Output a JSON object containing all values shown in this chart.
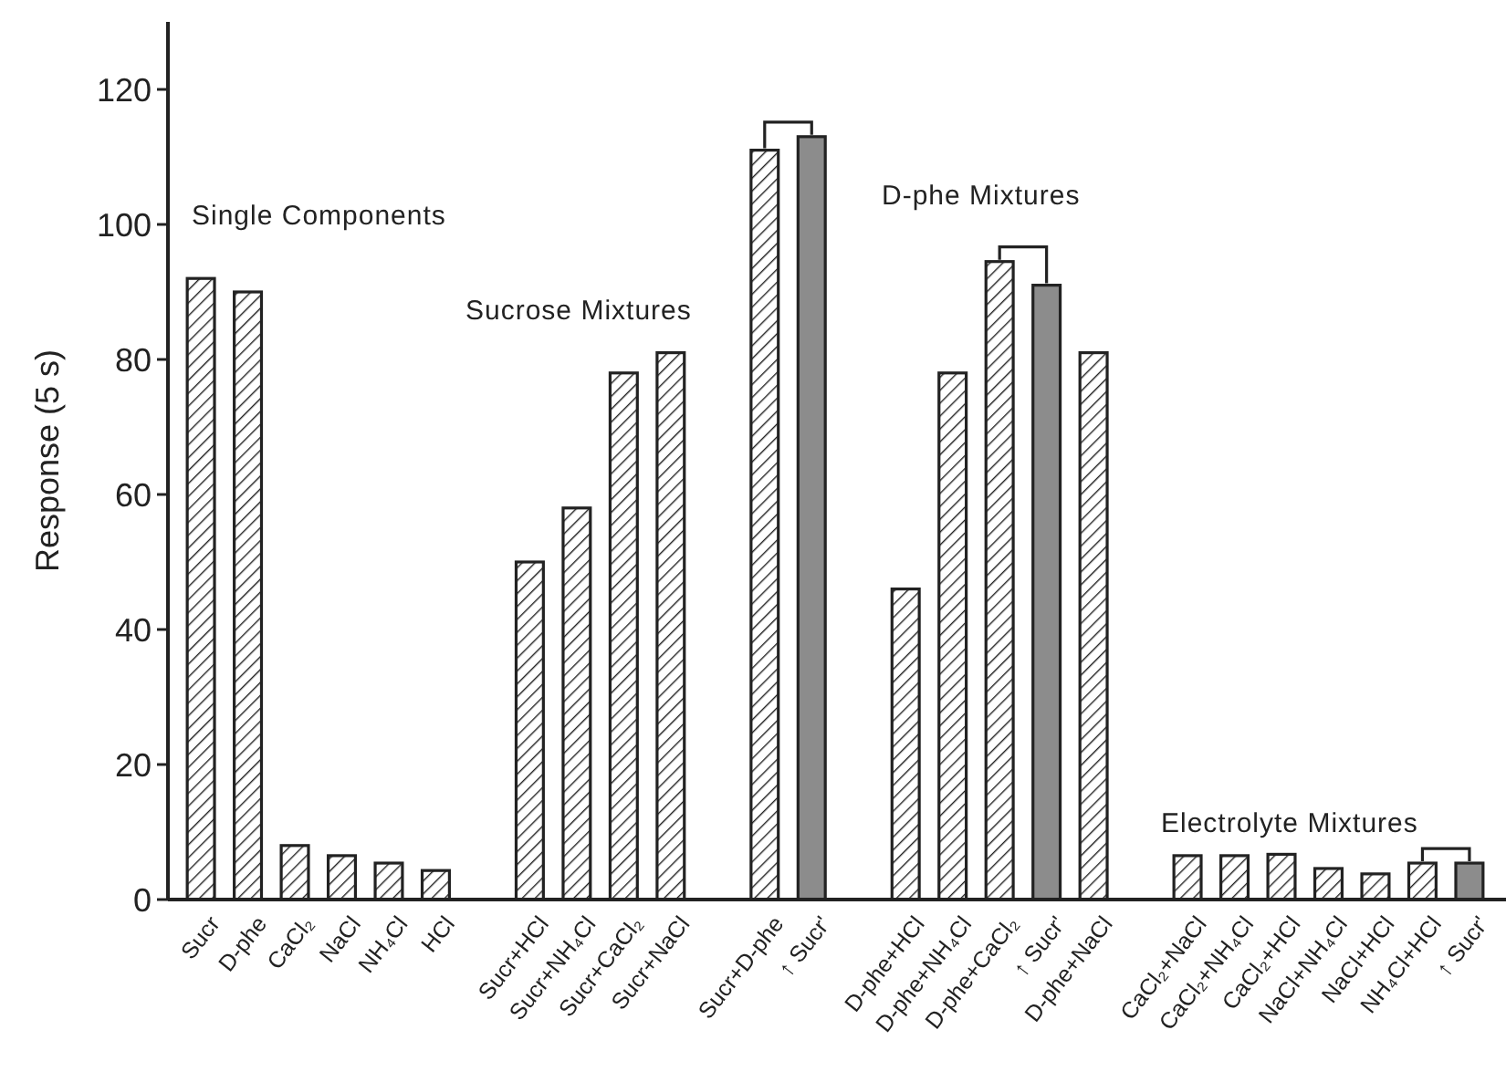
{
  "chart_data": {
    "type": "bar",
    "ylabel": "Response (5 s)",
    "ylim": [
      0,
      130
    ],
    "yticks": [
      0,
      20,
      40,
      60,
      80,
      100,
      120
    ],
    "grid": false,
    "categories": [
      "Sucr",
      "D-phe",
      "CaCl₂",
      "NaCl",
      "NH₄Cl",
      "HCl",
      null,
      "Sucr+HCl",
      "Sucr+NH₄Cl",
      "Sucr+CaCl₂",
      "Sucr+NaCl",
      null,
      "Sucr+D-phe",
      "↑ Sucr'",
      null,
      "D-phe+HCl",
      "D-phe+NH₄Cl",
      "D-phe+CaCl₂",
      "↑ Sucr'",
      "D-phe+NaCl",
      null,
      "CaCl₂+NaCl",
      "CaCl₂+NH₄Cl",
      "CaCl₂+HCl",
      "NaCl+NH₄Cl",
      "NaCl+HCl",
      "NH₄Cl+HCl",
      "↑ Sucr'"
    ],
    "series": [
      {
        "color": "#222222",
        "values": [
          92,
          90,
          8,
          6.5,
          5.4,
          4.3,
          null,
          50,
          58,
          78,
          81,
          null,
          111,
          null,
          null,
          46,
          78,
          94.5,
          null,
          81,
          null,
          6.5,
          6.5,
          6.7,
          4.6,
          3.8,
          5.4,
          null
        ]
      },
      {
        "color": "#8c8c8c",
        "values": [
          null,
          null,
          null,
          null,
          null,
          null,
          null,
          null,
          null,
          null,
          null,
          null,
          null,
          113,
          null,
          null,
          null,
          null,
          91,
          null,
          null,
          null,
          null,
          null,
          null,
          null,
          null,
          5.4
        ]
      }
    ],
    "annotations": [
      "Single Components",
      "Sucrose Mixtures",
      "D-phe Mixtures",
      "Electrolyte Mixtures"
    ]
  }
}
